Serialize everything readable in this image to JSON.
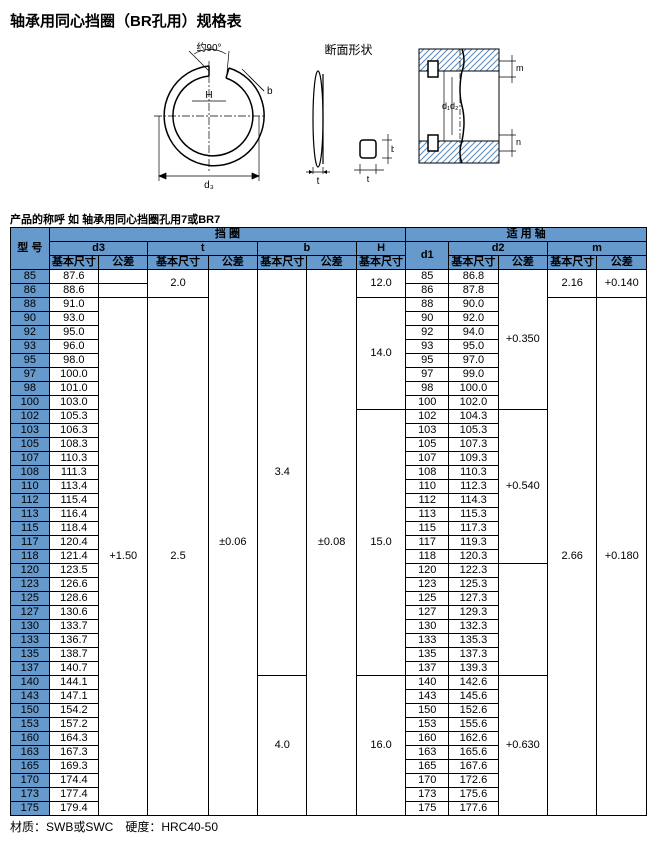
{
  "title": "轴承用同心挡圈（BR孔用）规格表",
  "section_label": "断面形状",
  "subtitle": "产品的称呼 如 轴承用同心挡圈孔用7或BR7",
  "footer": "材质：SWB或SWC　硬度：HRC40-50",
  "headers": {
    "model": "型  号",
    "ring": "挡  圈",
    "shaft": "适 用 轴",
    "d3": "d3",
    "t": "t",
    "b": "b",
    "H": "H",
    "d1": "d1",
    "d2": "d2",
    "m": "m",
    "base": "基本尺寸",
    "tol": "公差"
  },
  "rows": [
    {
      "idx": "85",
      "d3": "87.6",
      "d1": "85",
      "d2": "86.8"
    },
    {
      "idx": "86",
      "d3": "88.6",
      "d1": "86",
      "d2": "87.8"
    },
    {
      "idx": "88",
      "d3": "91.0",
      "d1": "88",
      "d2": "90.0"
    },
    {
      "idx": "90",
      "d3": "93.0",
      "d1": "90",
      "d2": "92.0"
    },
    {
      "idx": "92",
      "d3": "95.0",
      "d1": "92",
      "d2": "94.0"
    },
    {
      "idx": "93",
      "d3": "96.0",
      "d1": "93",
      "d2": "95.0"
    },
    {
      "idx": "95",
      "d3": "98.0",
      "d1": "95",
      "d2": "97.0"
    },
    {
      "idx": "97",
      "d3": "100.0",
      "d1": "97",
      "d2": "99.0"
    },
    {
      "idx": "98",
      "d3": "101.0",
      "d1": "98",
      "d2": "100.0"
    },
    {
      "idx": "100",
      "d3": "103.0",
      "d1": "100",
      "d2": "102.0"
    },
    {
      "idx": "102",
      "d3": "105.3",
      "d1": "102",
      "d2": "104.3"
    },
    {
      "idx": "103",
      "d3": "106.3",
      "d1": "103",
      "d2": "105.3"
    },
    {
      "idx": "105",
      "d3": "108.3",
      "d1": "105",
      "d2": "107.3"
    },
    {
      "idx": "107",
      "d3": "110.3",
      "d1": "107",
      "d2": "109.3"
    },
    {
      "idx": "108",
      "d3": "111.3",
      "d1": "108",
      "d2": "110.3"
    },
    {
      "idx": "110",
      "d3": "113.4",
      "d1": "110",
      "d2": "112.3"
    },
    {
      "idx": "112",
      "d3": "115.4",
      "d1": "112",
      "d2": "114.3"
    },
    {
      "idx": "113",
      "d3": "116.4",
      "d1": "113",
      "d2": "115.3"
    },
    {
      "idx": "115",
      "d3": "118.4",
      "d1": "115",
      "d2": "117.3"
    },
    {
      "idx": "117",
      "d3": "120.4",
      "d1": "117",
      "d2": "119.3"
    },
    {
      "idx": "118",
      "d3": "121.4",
      "d1": "118",
      "d2": "120.3"
    },
    {
      "idx": "120",
      "d3": "123.5",
      "d1": "120",
      "d2": "122.3"
    },
    {
      "idx": "123",
      "d3": "126.6",
      "d1": "123",
      "d2": "125.3"
    },
    {
      "idx": "125",
      "d3": "128.6",
      "d1": "125",
      "d2": "127.3"
    },
    {
      "idx": "127",
      "d3": "130.6",
      "d1": "127",
      "d2": "129.3"
    },
    {
      "idx": "130",
      "d3": "133.7",
      "d1": "130",
      "d2": "132.3"
    },
    {
      "idx": "133",
      "d3": "136.7",
      "d1": "133",
      "d2": "135.3"
    },
    {
      "idx": "135",
      "d3": "138.7",
      "d1": "135",
      "d2": "137.3"
    },
    {
      "idx": "137",
      "d3": "140.7",
      "d1": "137",
      "d2": "139.3"
    },
    {
      "idx": "140",
      "d3": "144.1",
      "d1": "140",
      "d2": "142.6"
    },
    {
      "idx": "143",
      "d3": "147.1",
      "d1": "143",
      "d2": "145.6"
    },
    {
      "idx": "150",
      "d3": "154.2",
      "d1": "150",
      "d2": "152.6"
    },
    {
      "idx": "153",
      "d3": "157.2",
      "d1": "153",
      "d2": "155.6"
    },
    {
      "idx": "160",
      "d3": "164.3",
      "d1": "160",
      "d2": "162.6"
    },
    {
      "idx": "163",
      "d3": "167.3",
      "d1": "163",
      "d2": "165.6"
    },
    {
      "idx": "165",
      "d3": "169.3",
      "d1": "165",
      "d2": "167.6"
    },
    {
      "idx": "170",
      "d3": "174.4",
      "d1": "170",
      "d2": "172.6"
    },
    {
      "idx": "173",
      "d3": "177.4",
      "d1": "173",
      "d2": "175.6"
    },
    {
      "idx": "175",
      "d3": "179.4",
      "d1": "175",
      "d2": "177.6"
    }
  ],
  "spans": {
    "d3_tol": {
      "text": "+1.50",
      "start": 2,
      "len": 37
    },
    "t_base1": {
      "text": "2.0",
      "start": 0,
      "len": 2
    },
    "t_base2": {
      "text": "2.5",
      "start": 2,
      "len": 37
    },
    "t_tol": {
      "text": "±0.06",
      "start": 0,
      "len": 39
    },
    "b_base1": {
      "text": "3.4",
      "start": 0,
      "len": 29
    },
    "b_base2": {
      "text": "4.0",
      "start": 29,
      "len": 10
    },
    "b_tol": {
      "text": "±0.08",
      "start": 0,
      "len": 39
    },
    "H1": {
      "text": "12.0",
      "start": 0,
      "len": 2
    },
    "H2": {
      "text": "14.0",
      "start": 2,
      "len": 8
    },
    "H3": {
      "text": "15.0",
      "start": 10,
      "len": 19
    },
    "H4": {
      "text": "16.0",
      "start": 29,
      "len": 10
    },
    "d2t1": {
      "text": "+0.350",
      "start": 0,
      "len": 10
    },
    "d2t2": {
      "text": "+0.540",
      "start": 10,
      "len": 11
    },
    "d2t3": {
      "text": "",
      "start": 21,
      "len": 8
    },
    "d2t4": {
      "text": "+0.630",
      "start": 29,
      "len": 10
    },
    "m_b1": {
      "text": "2.16",
      "start": 0,
      "len": 2
    },
    "m_b2": {
      "text": "2.66",
      "start": 2,
      "len": 37
    },
    "m_t1": {
      "text": "+0.140",
      "start": 0,
      "len": 2
    },
    "m_t2": {
      "text": "+0.180",
      "start": 2,
      "len": 37
    }
  },
  "diagram_labels": {
    "angle": "约90°",
    "H": "H",
    "b": "b",
    "d3": "d₃",
    "t": "t",
    "m": "m",
    "n": "n",
    "d1": "d₁",
    "d2": "d₂"
  },
  "colors": {
    "header_bg": "#6699cc",
    "hatch": "#5a88b8",
    "line": "#000000"
  }
}
